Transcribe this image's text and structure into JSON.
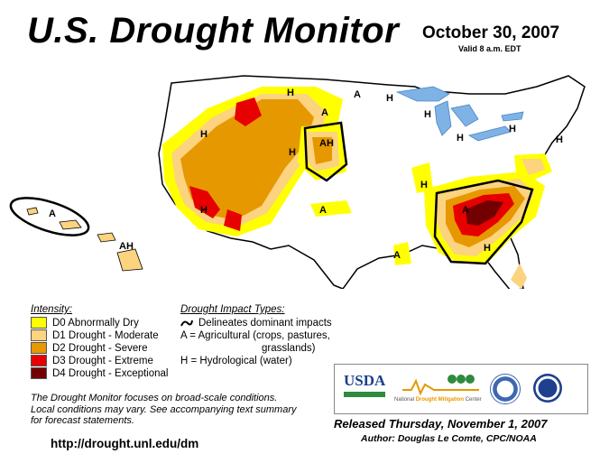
{
  "header": {
    "title": "U.S. Drought Monitor",
    "date": "October 30, 2007",
    "valid": "Valid 8 a.m. EDT"
  },
  "legend": {
    "intensity_heading": "Intensity:",
    "items": [
      {
        "label": "D0 Abnormally Dry",
        "color": "#ffff00"
      },
      {
        "label": "D1 Drought - Moderate",
        "color": "#fcd37f"
      },
      {
        "label": "D2 Drought - Severe",
        "color": "#e69800"
      },
      {
        "label": "D3 Drought - Extreme",
        "color": "#e60000"
      },
      {
        "label": "D4 Drought - Exceptional",
        "color": "#730000"
      }
    ],
    "impact_heading": "Drought Impact Types:",
    "impact_line": "Delineates dominant impacts",
    "impact_a_1": "A = Agricultural (crops, pastures,",
    "impact_a_2": "grasslands)",
    "impact_h": "H = Hydrological (water)"
  },
  "map_labels": {
    "H": "H",
    "A": "A",
    "AH": "AH"
  },
  "footer": {
    "note_1": "The Drought Monitor focuses on broad-scale conditions.",
    "note_2": "Local conditions may vary. See accompanying text summary",
    "note_3": "for forecast statements.",
    "url": "http://drought.unl.edu/dm",
    "released": "Released Thursday, November 1, 2007",
    "author": "Author:  Douglas Le Comte, CPC/NOAA"
  },
  "logos": {
    "usda": "USDA",
    "ndmc": "National Drought Mitigation Center",
    "ndmc_prefix": "National",
    "ndmc_highlight": "Drought Mitigation",
    "ndmc_suffix": "Center"
  }
}
